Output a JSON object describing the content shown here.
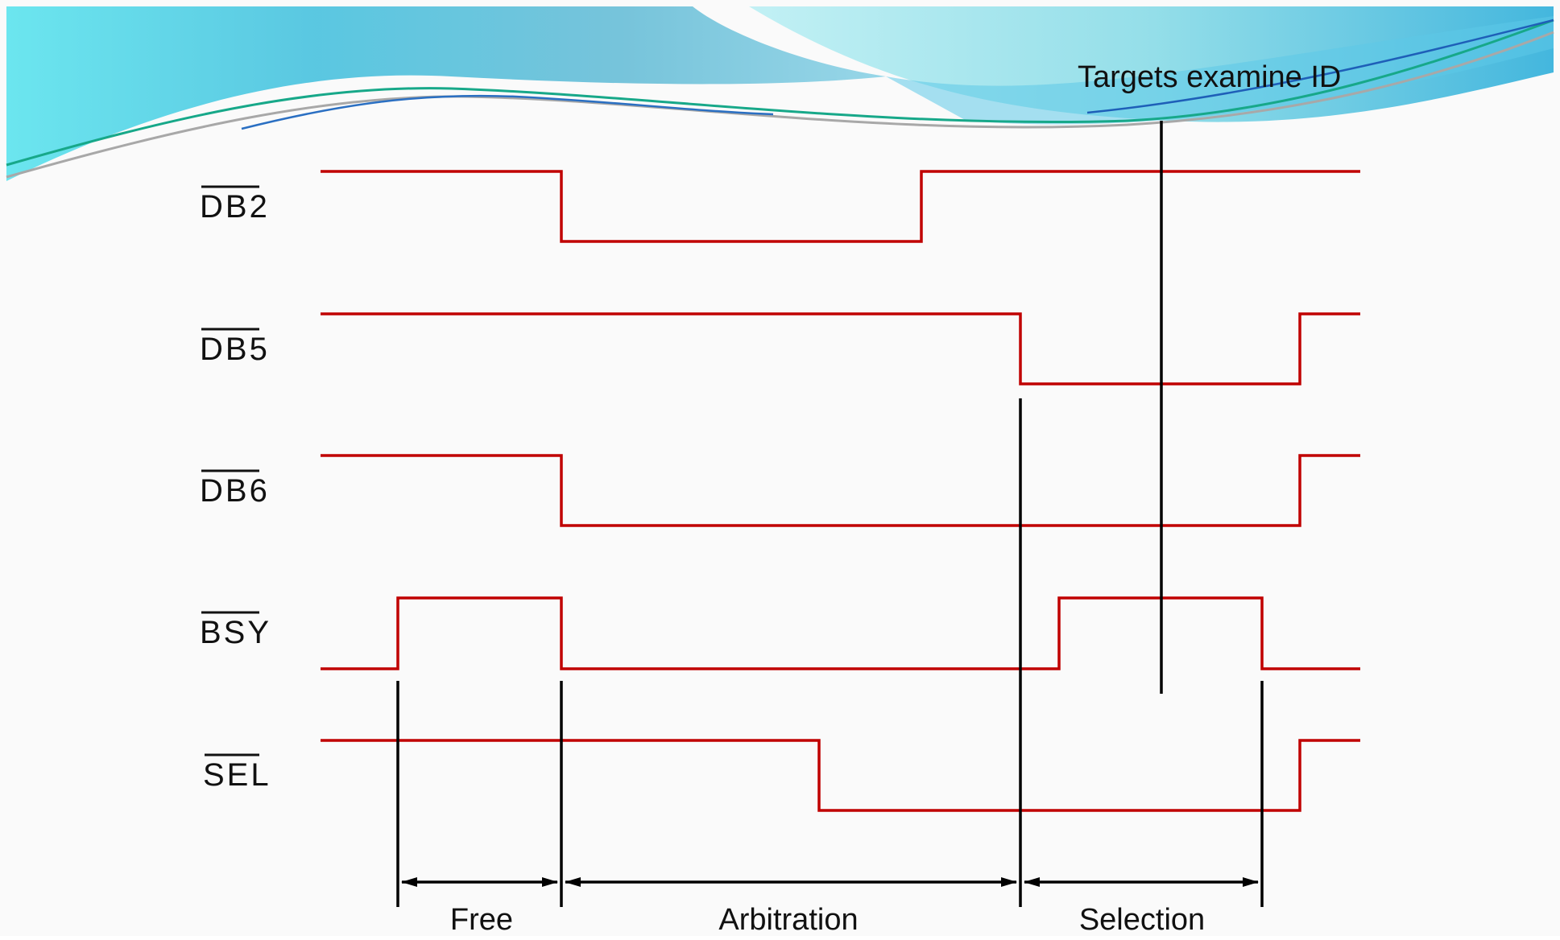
{
  "diagram": {
    "annotation": "Targets examine ID",
    "signal_color": "#c00000",
    "signals": [
      {
        "label": "DB2",
        "overbar": true,
        "high_first": true
      },
      {
        "label": "DB5",
        "overbar": true,
        "high_first": true
      },
      {
        "label": "DB6",
        "overbar": true,
        "high_first": true
      },
      {
        "label": "BSY",
        "overbar": true,
        "high_first": false
      },
      {
        "label": "SEL",
        "overbar": true,
        "high_first": true
      }
    ],
    "phases": [
      {
        "label": "Free"
      },
      {
        "label": "Arbitration"
      },
      {
        "label": "Selection"
      }
    ]
  }
}
